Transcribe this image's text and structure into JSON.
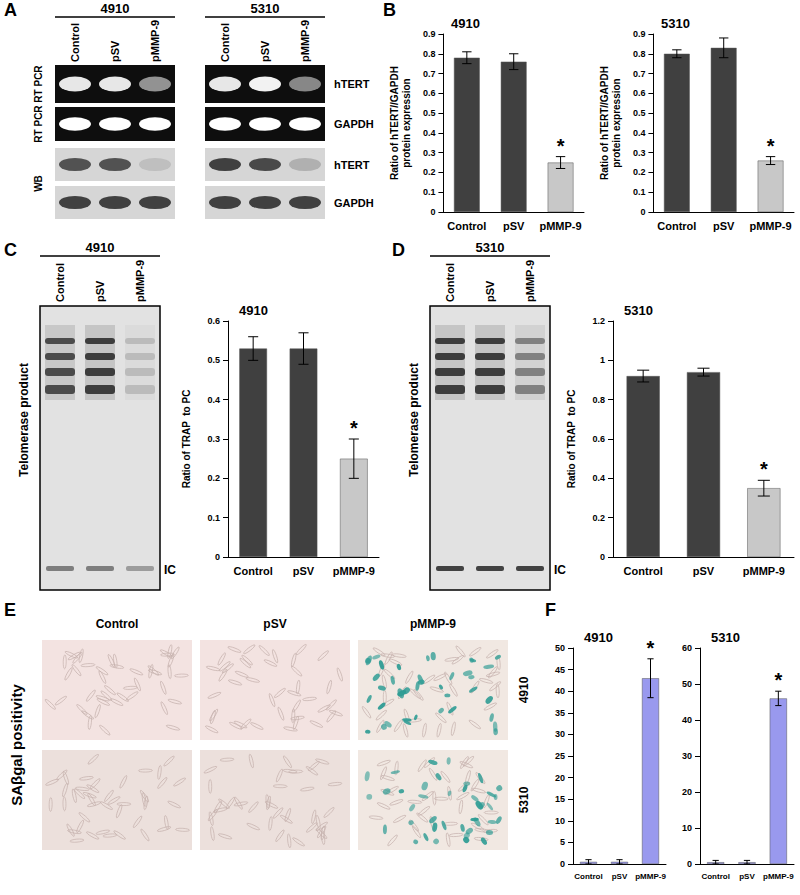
{
  "chart_data": [
    {
      "type": "bar",
      "title": "4910",
      "y_label": "Ratio of hTERT//GAPDH\nprotein expression",
      "categories": [
        "Control",
        "pSV",
        "pMMP-9"
      ],
      "values": [
        0.78,
        0.76,
        0.25
      ],
      "errors": [
        0.03,
        0.04,
        0.03
      ],
      "colors": [
        "#404040",
        "#404040",
        "#c8c8c8"
      ],
      "significance": [
        null,
        null,
        "*"
      ],
      "ylim": [
        0,
        0.9
      ],
      "yticks": [
        0,
        0.1,
        0.2,
        0.3,
        0.4,
        0.5,
        0.6,
        0.7,
        0.8,
        0.9
      ],
      "grid": false
    },
    {
      "type": "bar",
      "title": "5310",
      "y_label": "Ratio of hTERT//GAPDH\nprotein expression",
      "categories": [
        "Control",
        "pSV",
        "pMMP-9"
      ],
      "values": [
        0.8,
        0.83,
        0.26
      ],
      "errors": [
        0.02,
        0.05,
        0.02
      ],
      "colors": [
        "#404040",
        "#404040",
        "#c8c8c8"
      ],
      "significance": [
        null,
        null,
        "*"
      ],
      "ylim": [
        0,
        0.9
      ],
      "yticks": [
        0,
        0.1,
        0.2,
        0.3,
        0.4,
        0.5,
        0.6,
        0.7,
        0.8,
        0.9
      ],
      "grid": false
    },
    {
      "type": "bar",
      "title": "4910",
      "y_label": "Ratio of TRAP  to PC",
      "categories": [
        "Control",
        "pSV",
        "pMMP-9"
      ],
      "values": [
        0.53,
        0.53,
        0.25
      ],
      "errors": [
        0.03,
        0.04,
        0.05
      ],
      "colors": [
        "#404040",
        "#404040",
        "#c8c8c8"
      ],
      "significance": [
        null,
        null,
        "*"
      ],
      "ylim": [
        0,
        0.6
      ],
      "yticks": [
        0,
        0.1,
        0.2,
        0.3,
        0.4,
        0.5,
        0.6
      ],
      "grid": false
    },
    {
      "type": "bar",
      "title": "5310",
      "y_label": "Ratio of TRAP  to PC",
      "categories": [
        "Control",
        "pSV",
        "pMMP-9"
      ],
      "values": [
        0.92,
        0.94,
        0.35
      ],
      "errors": [
        0.03,
        0.02,
        0.04
      ],
      "colors": [
        "#404040",
        "#404040",
        "#c8c8c8"
      ],
      "significance": [
        null,
        null,
        "*"
      ],
      "ylim": [
        0,
        1.2
      ],
      "yticks": [
        0,
        0.2,
        0.4,
        0.6,
        0.8,
        1,
        1.2
      ],
      "grid": false
    },
    {
      "type": "bar",
      "title": "4910",
      "categories": [
        "Control",
        "pSV",
        "pMMP-9"
      ],
      "values": [
        0.5,
        0.5,
        43
      ],
      "errors": [
        0.5,
        0.5,
        4.5
      ],
      "colors": [
        "#9999ee",
        "#9999ee",
        "#9999ee"
      ],
      "significance": [
        null,
        null,
        "*"
      ],
      "ylim": [
        0,
        50
      ],
      "yticks": [
        0,
        5,
        10,
        15,
        20,
        25,
        30,
        35,
        40,
        45,
        50
      ],
      "grid": false
    },
    {
      "type": "bar",
      "title": "5310",
      "categories": [
        "Control",
        "pSV",
        "pMMP-9"
      ],
      "values": [
        0.5,
        0.5,
        46
      ],
      "errors": [
        0.5,
        0.5,
        2
      ],
      "colors": [
        "#9999ee",
        "#9999ee",
        "#9999ee"
      ],
      "significance": [
        null,
        null,
        "*"
      ],
      "ylim": [
        0,
        60
      ],
      "yticks": [
        0,
        10,
        20,
        30,
        40,
        50,
        60
      ],
      "grid": false
    }
  ],
  "panel_letters": [
    "A",
    "B",
    "C",
    "D",
    "E",
    "F"
  ],
  "panel_A": {
    "row_labels_left": [
      "RT PCR",
      "RT PCR",
      "WB"
    ],
    "row_labels_right": [
      "hTERT",
      "GAPDH",
      "hTERT",
      "GAPDH"
    ],
    "row_styles": [
      "dark",
      "dark",
      "light",
      "light"
    ],
    "blots": [
      {
        "title": "4910",
        "lanes": [
          "Control",
          "pSV",
          "pMMP-9"
        ],
        "intensity": [
          [
            0.9,
            0.9,
            0.55
          ],
          [
            1,
            1,
            1
          ],
          [
            0.7,
            0.7,
            0.12
          ],
          [
            0.8,
            0.8,
            0.8
          ]
        ]
      },
      {
        "title": "5310",
        "lanes": [
          "Control",
          "pSV",
          "pMMP-9"
        ],
        "intensity": [
          [
            0.9,
            0.95,
            0.5
          ],
          [
            1,
            1,
            1
          ],
          [
            0.8,
            0.75,
            0.2
          ],
          [
            0.8,
            0.8,
            0.8
          ]
        ]
      }
    ]
  },
  "panel_C": {
    "title": "4910",
    "lanes": [
      "Control",
      "pSV",
      "pMMP-9"
    ],
    "y_label": "Telomerase product",
    "ic_label": "IC",
    "intensity": [
      0.9,
      1,
      0.2
    ],
    "ic_intensity": [
      0.5,
      0.5,
      0.35
    ]
  },
  "panel_D": {
    "title": "5310",
    "lanes": [
      "Control",
      "pSV",
      "pMMP-9"
    ],
    "y_label": "Telomerase product",
    "ic_label": "IC",
    "intensity": [
      1,
      1,
      0.55
    ],
    "ic_intensity": [
      0.8,
      0.8,
      0.8
    ]
  },
  "panel_E": {
    "row_title": "SAβgal positivity",
    "columns": [
      "Control",
      "pSV",
      "pMMP-9"
    ],
    "rows": [
      "4910",
      "5310"
    ],
    "stained": [
      false,
      false,
      true
    ]
  }
}
